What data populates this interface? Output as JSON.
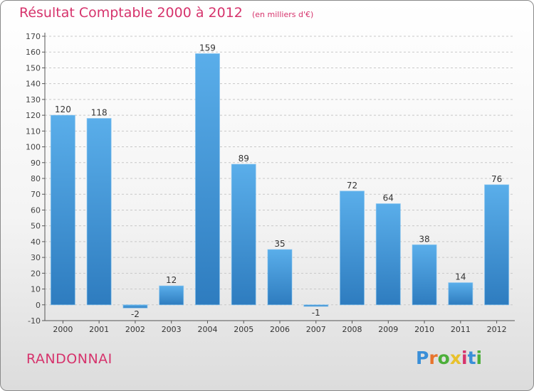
{
  "header": {
    "title": "Résultat Comptable 2000 à 2012",
    "subtitle": "(en milliers d'€)"
  },
  "footer": {
    "commune": "RANDONNAI",
    "logo": "Proxiti"
  },
  "colors": {
    "title": "#d6336c",
    "bar_light": "#5aaeea",
    "bar_dark": "#2e7cbf",
    "logo_letters": [
      "#3a8fd8",
      "#e8742c",
      "#4caf3a",
      "#e8c12c",
      "#d6336c",
      "#3a8fd8",
      "#4caf3a"
    ]
  },
  "chart_data": {
    "type": "bar",
    "title": "Résultat Comptable 2000 à 2012",
    "subtitle": "(en milliers d'€)",
    "categories": [
      "2000",
      "2001",
      "2002",
      "2003",
      "2004",
      "2005",
      "2006",
      "2007",
      "2008",
      "2009",
      "2010",
      "2011",
      "2012"
    ],
    "values": [
      120,
      118,
      -2,
      12,
      159,
      89,
      35,
      -1,
      72,
      64,
      38,
      14,
      76
    ],
    "data_labels": [
      "120",
      "118",
      "-2",
      "12",
      "159",
      "89",
      "35",
      "-1",
      "72",
      "64",
      "38",
      "14",
      "76"
    ],
    "y_ticks": [
      "-10",
      "0",
      "10",
      "20",
      "30",
      "40",
      "50",
      "60",
      "70",
      "80",
      "90",
      "100",
      "110",
      "120",
      "130",
      "140",
      "150",
      "160",
      "170"
    ],
    "ylim": [
      -10,
      170
    ],
    "grid": "horizontal-dashed"
  }
}
